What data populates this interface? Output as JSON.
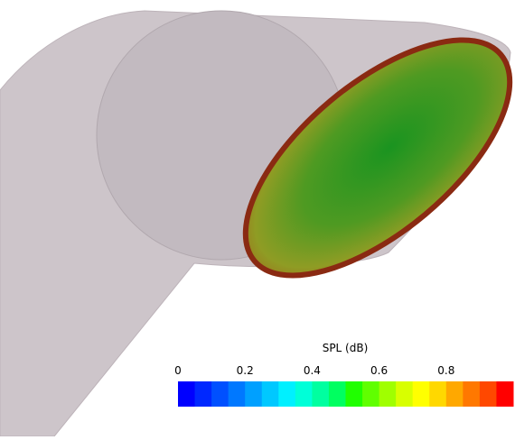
{
  "colorbar": {
    "title": "SPL (dB)",
    "lim": [
      0,
      1
    ],
    "ticks": [
      0,
      0.2,
      0.4,
      0.6,
      0.8
    ],
    "colors": [
      "#0000ff",
      "#0028ff",
      "#0050ff",
      "#0078ff",
      "#00a0ff",
      "#00c8ff",
      "#00f0ff",
      "#00ffd8",
      "#00ffa0",
      "#00ff60",
      "#20ff00",
      "#60ff00",
      "#a0ff00",
      "#d8ff00",
      "#ffff00",
      "#ffd800",
      "#ffa800",
      "#ff7800",
      "#ff4800",
      "#ff0000"
    ]
  }
}
